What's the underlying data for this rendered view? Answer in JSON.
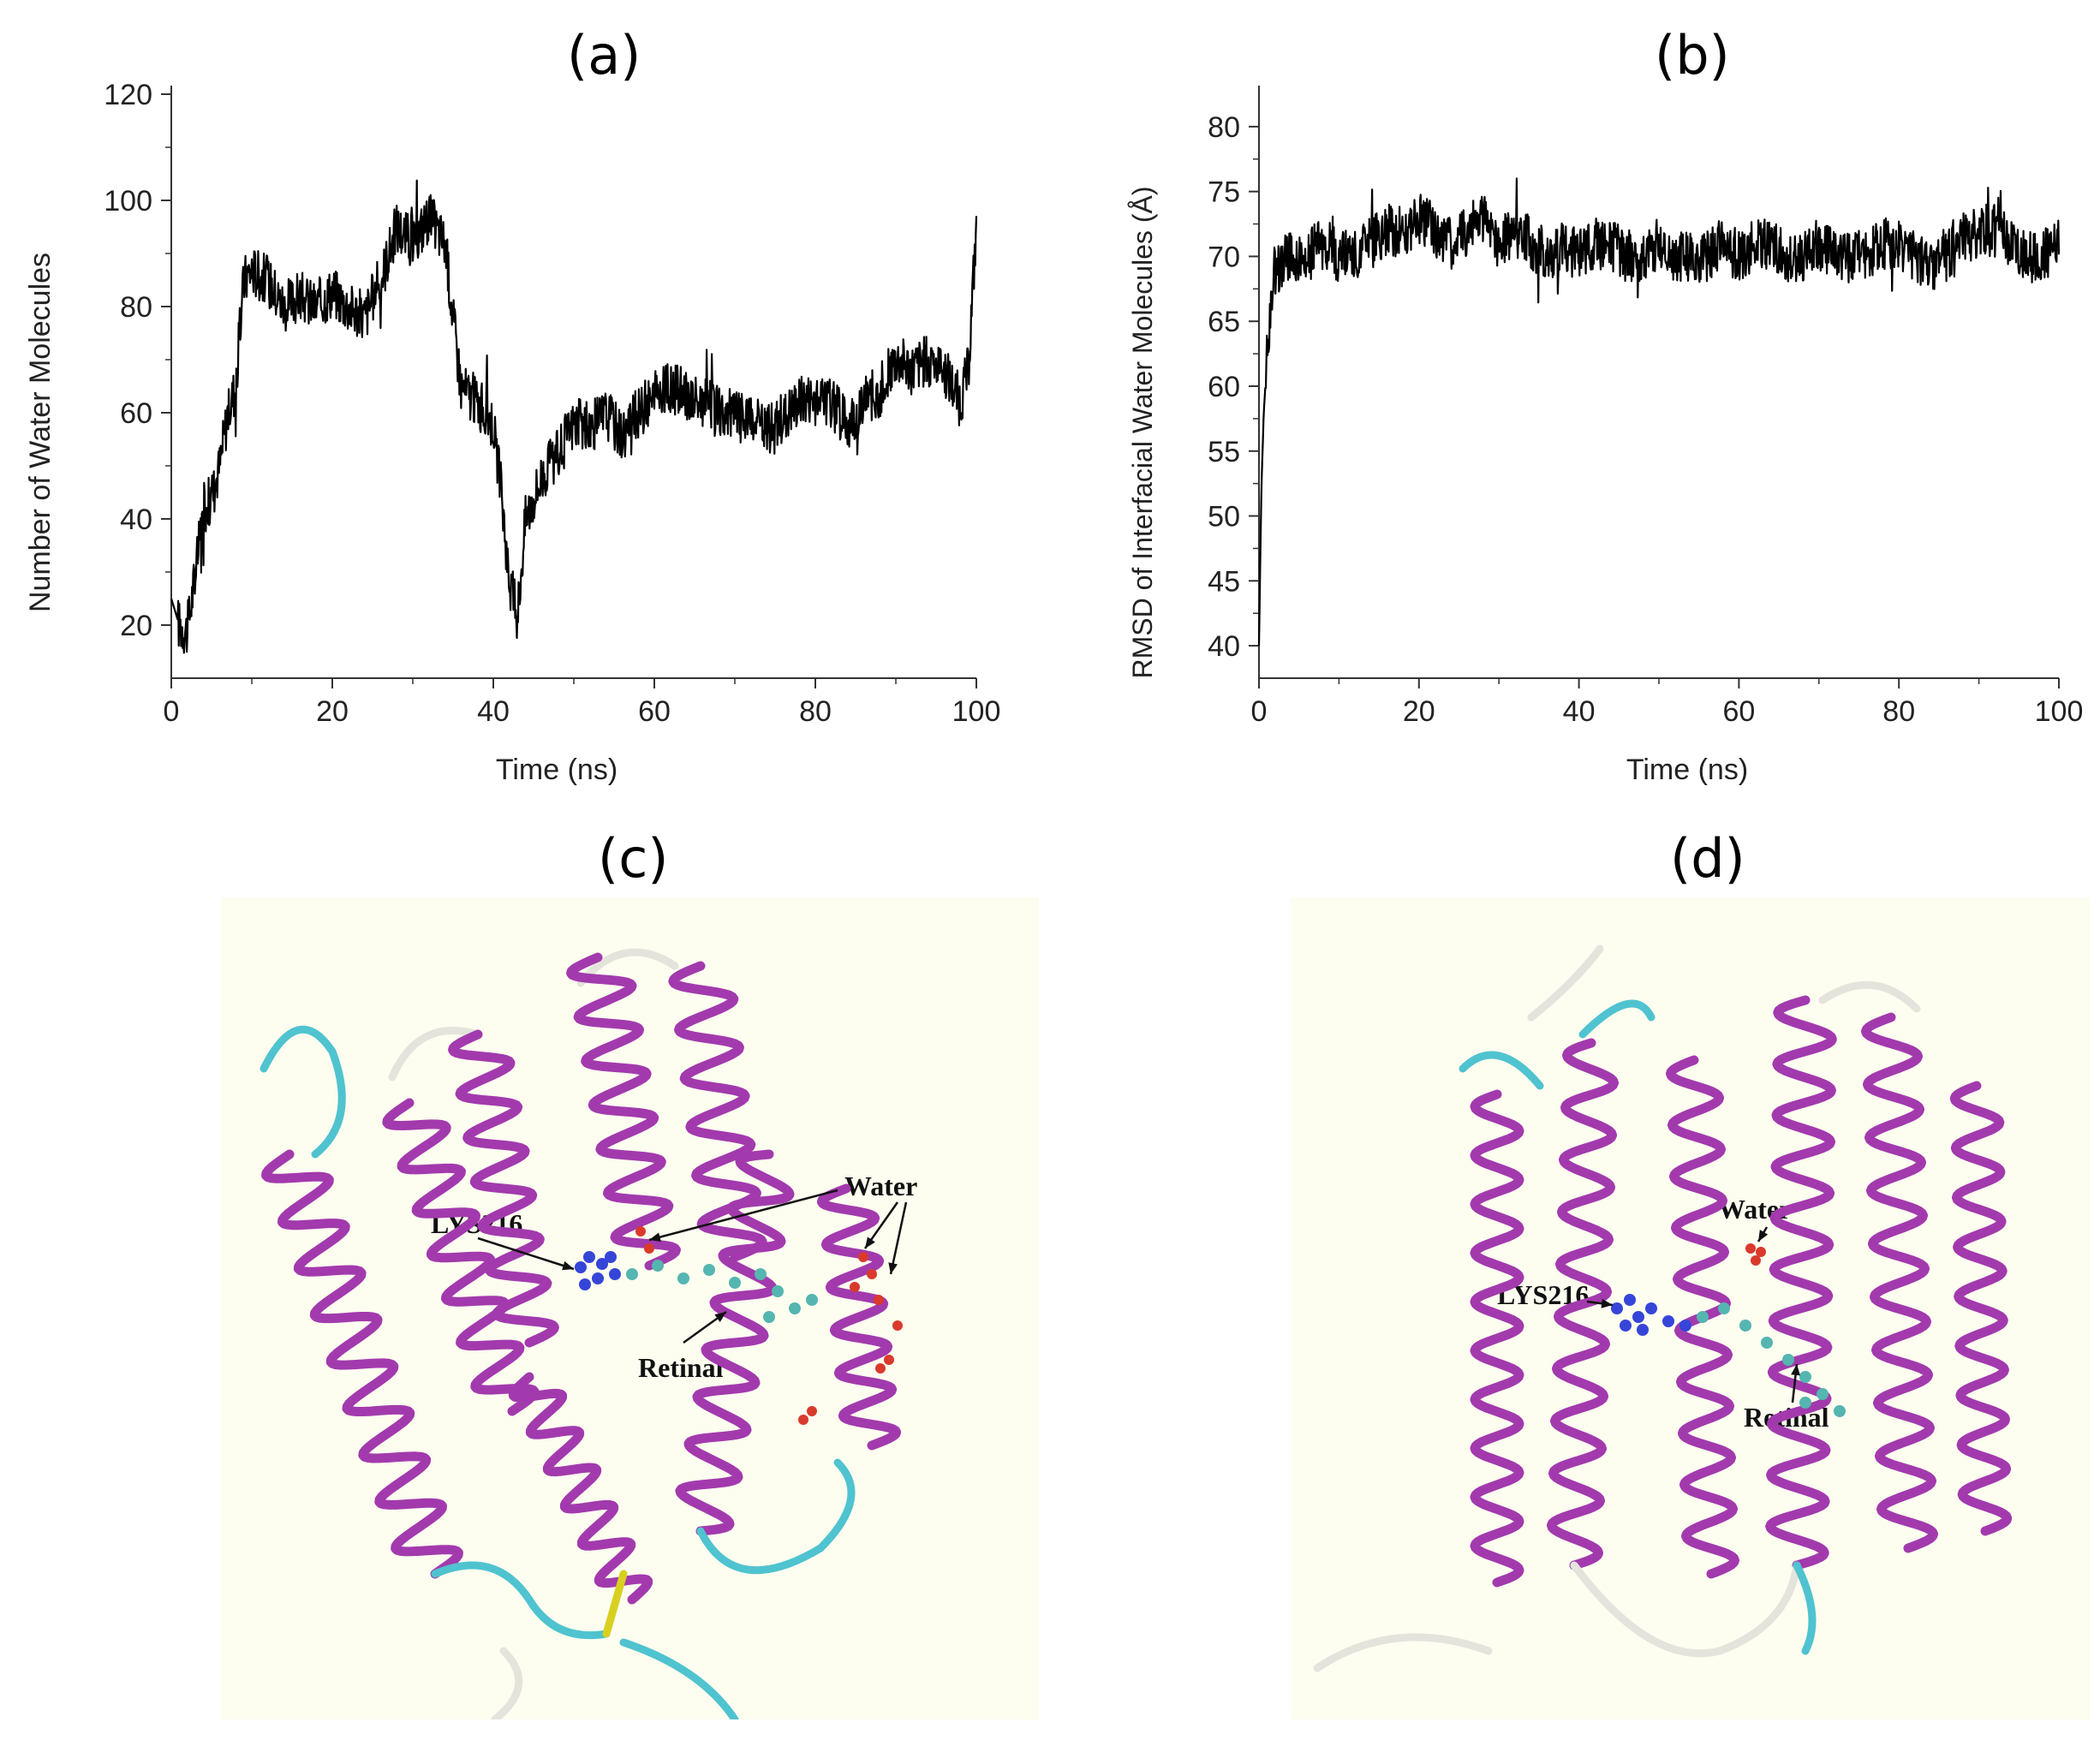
{
  "panels": {
    "a": "(a)",
    "b": "(b)",
    "c": "(c)",
    "d": "(d)"
  },
  "chart_data": [
    {
      "type": "line",
      "panel": "(a)",
      "xlabel": "Time (ns)",
      "ylabel": "Number of Water Molecules",
      "xlim": [
        0,
        100
      ],
      "ylim": [
        10,
        120
      ],
      "xticks": [
        0,
        20,
        40,
        60,
        80,
        100
      ],
      "yticks": [
        20,
        40,
        60,
        80,
        100,
        120
      ],
      "grid": false,
      "line_color": "#000000",
      "x": [
        0,
        1,
        2,
        3,
        4,
        5,
        6,
        7,
        8,
        9,
        10,
        12,
        14,
        16,
        18,
        20,
        22,
        24,
        26,
        28,
        30,
        32,
        34,
        35,
        36,
        38,
        40,
        41,
        42,
        43,
        44,
        46,
        48,
        50,
        52,
        54,
        56,
        58,
        60,
        62,
        64,
        66,
        68,
        70,
        72,
        74,
        76,
        78,
        80,
        82,
        84,
        86,
        88,
        90,
        92,
        94,
        96,
        98,
        99,
        100
      ],
      "y": [
        25,
        20,
        19,
        30,
        42,
        44,
        50,
        60,
        65,
        85,
        87,
        85,
        80,
        82,
        80,
        83,
        80,
        78,
        85,
        95,
        92,
        97,
        92,
        78,
        65,
        62,
        58,
        45,
        28,
        22,
        40,
        48,
        52,
        58,
        57,
        60,
        56,
        60,
        63,
        65,
        63,
        62,
        60,
        60,
        58,
        57,
        59,
        62,
        63,
        62,
        58,
        62,
        64,
        70,
        68,
        70,
        68,
        62,
        68,
        95
      ]
    },
    {
      "type": "line",
      "panel": "(b)",
      "xlabel": "Time (ns)",
      "ylabel": "RMSD of Interfacial Water Molecules (Å)",
      "xlim": [
        0,
        100
      ],
      "ylim": [
        37.5,
        82.5
      ],
      "xticks": [
        0,
        20,
        40,
        60,
        80,
        100
      ],
      "yticks": [
        40,
        45,
        50,
        55,
        60,
        65,
        70,
        75,
        80
      ],
      "grid": false,
      "line_color": "#000000",
      "x": [
        0,
        0.3,
        0.6,
        1,
        1.5,
        2,
        4,
        6,
        8,
        10,
        12,
        14,
        16,
        18,
        20,
        22,
        24,
        26,
        28,
        30,
        32,
        34,
        36,
        38,
        40,
        42,
        44,
        46,
        48,
        50,
        52,
        54,
        56,
        58,
        60,
        62,
        64,
        66,
        68,
        70,
        72,
        74,
        76,
        78,
        80,
        82,
        84,
        86,
        88,
        90,
        92,
        94,
        96,
        98,
        100
      ],
      "y": [
        40,
        52,
        58,
        62,
        67,
        69,
        70,
        70,
        71,
        70,
        70,
        71,
        72,
        72,
        73,
        72,
        71,
        72,
        73,
        71,
        72,
        71,
        70,
        71,
        70,
        71,
        71,
        70,
        70,
        71,
        70,
        70,
        70,
        71,
        70,
        71,
        71,
        70,
        70,
        71,
        70,
        70,
        70,
        71,
        71,
        70,
        69,
        70,
        71,
        72,
        72,
        71,
        70,
        70,
        71
      ]
    }
  ],
  "molecules": {
    "c_labels": {
      "lys": "LYS216",
      "water": "Water",
      "retinal": "Retinal"
    },
    "d_labels": {
      "lys": "LYS216",
      "water": "Water",
      "retinal": "Retinal"
    },
    "colors": {
      "helix": "#a23aad",
      "turn": "#4fc3cf",
      "coil": "#e4e4dc",
      "lysine": "#3545d8",
      "retinal": "#55b5b0",
      "water": "#d93a2b",
      "bridge": "#d8d020",
      "background": "#fdfdf0"
    }
  }
}
